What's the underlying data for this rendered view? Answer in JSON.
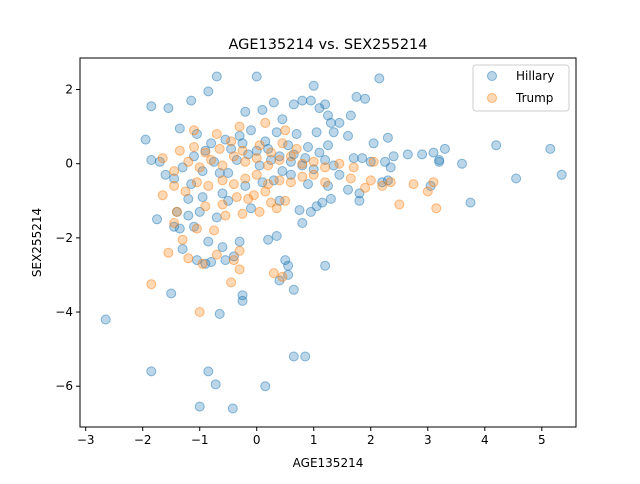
{
  "chart_data": {
    "type": "scatter",
    "title": "AGE135214 vs. SEX255214",
    "xlabel": "AGE135214",
    "ylabel": "SEX255214",
    "xlim": [
      -3.1,
      5.6
    ],
    "ylim": [
      -7.1,
      2.85
    ],
    "xticks": [
      -3,
      -2,
      -1,
      0,
      1,
      2,
      3,
      4,
      5
    ],
    "xtick_labels": [
      "−3",
      "−2",
      "−1",
      "0",
      "1",
      "2",
      "3",
      "4",
      "5"
    ],
    "yticks": [
      -6,
      -4,
      -2,
      0,
      2
    ],
    "ytick_labels": [
      "−6",
      "−4",
      "−2",
      "0",
      "2"
    ],
    "grid": false,
    "legend_position": "top-right",
    "series": [
      {
        "name": "Hillary",
        "color": "#1f77b4",
        "points": [
          [
            -2.65,
            -4.2
          ],
          [
            -1.85,
            -5.6
          ],
          [
            -1.0,
            -6.55
          ],
          [
            -0.85,
            -5.6
          ],
          [
            -0.72,
            -5.95
          ],
          [
            -0.42,
            -6.6
          ],
          [
            0.15,
            -6.0
          ],
          [
            0.65,
            -5.2
          ],
          [
            0.85,
            -5.2
          ],
          [
            -1.5,
            -3.5
          ],
          [
            -0.65,
            -4.05
          ],
          [
            -0.25,
            -3.55
          ],
          [
            -0.25,
            -3.7
          ],
          [
            0.4,
            -3.15
          ],
          [
            0.55,
            -3.0
          ],
          [
            0.65,
            -3.4
          ],
          [
            1.2,
            -2.75
          ],
          [
            -0.55,
            -2.6
          ],
          [
            -0.8,
            -2.65
          ],
          [
            -0.9,
            -2.7
          ],
          [
            -1.05,
            -2.6
          ],
          [
            -1.3,
            -2.3
          ],
          [
            -1.45,
            -1.7
          ],
          [
            -1.35,
            -1.75
          ],
          [
            -1.1,
            -1.7
          ],
          [
            -0.85,
            -2.1
          ],
          [
            -0.6,
            -2.25
          ],
          [
            -0.4,
            -2.5
          ],
          [
            -0.3,
            -2.1
          ],
          [
            0.2,
            -2.05
          ],
          [
            0.35,
            -1.95
          ],
          [
            0.5,
            -2.6
          ],
          [
            0.55,
            -2.75
          ],
          [
            0.8,
            -1.6
          ],
          [
            -1.75,
            -1.5
          ],
          [
            -1.4,
            -1.3
          ],
          [
            -1.2,
            -1.4
          ],
          [
            -1.0,
            -1.3
          ],
          [
            -0.7,
            -1.45
          ],
          [
            -0.5,
            -1.0
          ],
          [
            -0.1,
            -1.2
          ],
          [
            0.4,
            -1.0
          ],
          [
            0.75,
            -1.25
          ],
          [
            0.95,
            -1.3
          ],
          [
            1.05,
            -1.15
          ],
          [
            1.15,
            -1.05
          ],
          [
            1.3,
            -0.95
          ],
          [
            -1.2,
            -0.95
          ],
          [
            -0.95,
            -0.9
          ],
          [
            -0.6,
            -0.8
          ],
          [
            -0.2,
            -0.6
          ],
          [
            0.1,
            -0.5
          ],
          [
            0.3,
            -0.45
          ],
          [
            0.6,
            -0.3
          ],
          [
            0.9,
            -0.55
          ],
          [
            1.25,
            -0.6
          ],
          [
            1.6,
            -0.7
          ],
          [
            1.8,
            -0.8
          ],
          [
            1.8,
            -1.0
          ],
          [
            2.2,
            -0.5
          ],
          [
            2.3,
            -0.45
          ],
          [
            -1.85,
            0.1
          ],
          [
            -1.7,
            0.05
          ],
          [
            -1.45,
            -0.4
          ],
          [
            -1.3,
            -0.1
          ],
          [
            -1.1,
            0.2
          ],
          [
            -0.9,
            0.35
          ],
          [
            -0.75,
            0.05
          ],
          [
            -0.5,
            -0.25
          ],
          [
            -0.35,
            0.1
          ],
          [
            -0.15,
            0.25
          ],
          [
            0.05,
            -0.05
          ],
          [
            0.25,
            0.1
          ],
          [
            0.45,
            -0.2
          ],
          [
            0.6,
            0.05
          ],
          [
            0.85,
            0.15
          ],
          [
            1.0,
            -0.15
          ],
          [
            1.2,
            0.1
          ],
          [
            1.45,
            -0.3
          ],
          [
            1.7,
            0.15
          ],
          [
            1.85,
            0.15
          ],
          [
            2.0,
            0.05
          ],
          [
            2.25,
            0.05
          ],
          [
            2.35,
            -0.1
          ],
          [
            2.65,
            0.25
          ],
          [
            2.9,
            0.25
          ],
          [
            3.1,
            0.3
          ],
          [
            3.2,
            0.05
          ],
          [
            3.2,
            0.1
          ],
          [
            3.6,
            0.0
          ],
          [
            -1.95,
            0.65
          ],
          [
            -1.35,
            0.95
          ],
          [
            -1.05,
            0.8
          ],
          [
            -0.8,
            0.55
          ],
          [
            -0.55,
            0.65
          ],
          [
            -0.3,
            0.75
          ],
          [
            -0.1,
            0.9
          ],
          [
            0.15,
            0.6
          ],
          [
            0.35,
            0.85
          ],
          [
            0.55,
            0.5
          ],
          [
            0.7,
            0.8
          ],
          [
            0.9,
            0.45
          ],
          [
            1.05,
            0.85
          ],
          [
            1.25,
            0.5
          ],
          [
            1.35,
            0.85
          ],
          [
            1.6,
            0.75
          ],
          [
            2.05,
            0.55
          ],
          [
            2.3,
            0.7
          ],
          [
            2.4,
            0.2
          ],
          [
            3.3,
            0.4
          ],
          [
            -1.85,
            1.55
          ],
          [
            -1.55,
            1.5
          ],
          [
            -1.15,
            1.7
          ],
          [
            -0.85,
            1.95
          ],
          [
            -0.2,
            1.4
          ],
          [
            0.1,
            1.45
          ],
          [
            0.3,
            1.65
          ],
          [
            0.45,
            1.2
          ],
          [
            0.65,
            1.6
          ],
          [
            0.8,
            1.7
          ],
          [
            0.95,
            1.7
          ],
          [
            1.1,
            1.5
          ],
          [
            1.2,
            1.6
          ],
          [
            1.25,
            1.3
          ],
          [
            1.3,
            1.1
          ],
          [
            1.45,
            1.1
          ],
          [
            1.65,
            1.3
          ],
          [
            1.75,
            1.8
          ],
          [
            1.9,
            1.75
          ],
          [
            -0.7,
            2.35
          ],
          [
            0.0,
            2.35
          ],
          [
            1.0,
            2.1
          ],
          [
            2.15,
            2.3
          ],
          [
            -1.6,
            -0.3
          ],
          [
            -1.15,
            -0.55
          ],
          [
            -0.95,
            -0.2
          ],
          [
            -0.65,
            -0.25
          ],
          [
            -0.45,
            0.4
          ],
          [
            -0.25,
            0.55
          ],
          [
            0.0,
            0.35
          ],
          [
            0.2,
            0.4
          ],
          [
            0.4,
            0.2
          ],
          [
            0.65,
            0.25
          ],
          [
            0.8,
            -0.05
          ],
          [
            1.1,
            0.3
          ],
          [
            1.35,
            -0.05
          ],
          [
            3.05,
            -0.6
          ],
          [
            3.75,
            -1.05
          ],
          [
            4.2,
            0.5
          ],
          [
            4.55,
            -0.4
          ],
          [
            5.15,
            0.4
          ],
          [
            5.35,
            -0.3
          ]
        ]
      },
      {
        "name": "Trump",
        "color": "#ff7f0e",
        "points": [
          [
            -1.85,
            -3.25
          ],
          [
            -1.0,
            -4.0
          ],
          [
            -0.45,
            -3.2
          ],
          [
            -0.3,
            -2.85
          ],
          [
            0.3,
            -2.95
          ],
          [
            0.45,
            -3.05
          ],
          [
            -1.55,
            -2.4
          ],
          [
            -1.2,
            -2.55
          ],
          [
            -0.95,
            -2.7
          ],
          [
            -0.7,
            -2.45
          ],
          [
            -0.4,
            -2.6
          ],
          [
            -0.3,
            -2.35
          ],
          [
            -1.45,
            -1.6
          ],
          [
            -1.3,
            -2.05
          ],
          [
            -1.05,
            -1.75
          ],
          [
            -0.75,
            -1.8
          ],
          [
            -0.55,
            -1.4
          ],
          [
            -0.25,
            -1.35
          ],
          [
            0.05,
            -1.3
          ],
          [
            0.25,
            -1.05
          ],
          [
            0.5,
            -1.0
          ],
          [
            -1.4,
            -1.3
          ],
          [
            -0.9,
            -1.15
          ],
          [
            -0.6,
            -1.1
          ],
          [
            -0.35,
            -0.9
          ],
          [
            -0.05,
            -0.85
          ],
          [
            0.15,
            -0.75
          ],
          [
            -1.65,
            -0.85
          ],
          [
            -1.45,
            -0.6
          ],
          [
            -1.25,
            -0.75
          ],
          [
            -1.05,
            -0.5
          ],
          [
            -0.85,
            -0.6
          ],
          [
            -0.6,
            -0.45
          ],
          [
            -0.4,
            -0.55
          ],
          [
            -0.2,
            -0.4
          ],
          [
            0.0,
            -0.3
          ],
          [
            0.2,
            -0.55
          ],
          [
            0.4,
            -0.45
          ],
          [
            0.6,
            -0.5
          ],
          [
            0.8,
            -0.35
          ],
          [
            1.0,
            -0.3
          ],
          [
            1.2,
            -0.5
          ],
          [
            -1.45,
            -0.2
          ],
          [
            -1.2,
            0.05
          ],
          [
            -1.0,
            -0.1
          ],
          [
            -0.8,
            0.1
          ],
          [
            -0.6,
            -0.05
          ],
          [
            -0.4,
            0.2
          ],
          [
            -0.2,
            0.05
          ],
          [
            0.0,
            0.15
          ],
          [
            0.2,
            -0.05
          ],
          [
            0.4,
            0.1
          ],
          [
            0.6,
            0.2
          ],
          [
            0.8,
            0.0
          ],
          [
            1.0,
            0.05
          ],
          [
            1.2,
            -0.1
          ],
          [
            1.45,
            0.0
          ],
          [
            1.7,
            -0.1
          ],
          [
            -1.65,
            0.15
          ],
          [
            -1.35,
            0.35
          ],
          [
            -1.1,
            0.45
          ],
          [
            -0.9,
            0.3
          ],
          [
            -0.65,
            0.4
          ],
          [
            -0.45,
            0.6
          ],
          [
            -0.25,
            0.35
          ],
          [
            0.05,
            0.5
          ],
          [
            0.25,
            0.3
          ],
          [
            0.45,
            0.55
          ],
          [
            0.7,
            0.4
          ],
          [
            -1.1,
            0.9
          ],
          [
            -0.7,
            0.8
          ],
          [
            -0.3,
            1.0
          ],
          [
            0.15,
            1.1
          ],
          [
            0.5,
            0.9
          ],
          [
            2.0,
            -0.45
          ],
          [
            2.05,
            0.05
          ],
          [
            2.2,
            -0.6
          ],
          [
            2.5,
            -1.1
          ],
          [
            2.75,
            -0.55
          ],
          [
            3.0,
            -0.75
          ],
          [
            3.1,
            -0.5
          ],
          [
            3.15,
            -1.2
          ],
          [
            2.35,
            -0.5
          ],
          [
            1.9,
            -0.65
          ],
          [
            1.65,
            -0.4
          ],
          [
            -0.15,
            -0.95
          ],
          [
            0.35,
            -1.2
          ]
        ]
      }
    ]
  }
}
